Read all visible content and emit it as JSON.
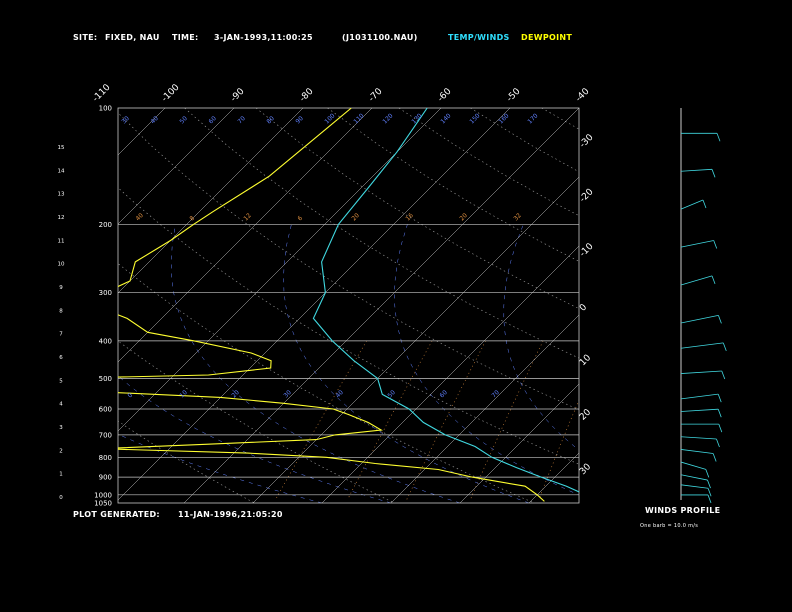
{
  "header": {
    "site_label": "SITE:",
    "site_value": "FIXED, NAU",
    "time_label": "TIME:",
    "time_value": "3-JAN-1993,11:00:25",
    "file_value": "(J1031100.NAU)",
    "legend_temp": "TEMP/WINDS",
    "legend_dew": "DEWPOINT"
  },
  "footer": {
    "generated_label": "PLOT GENERATED:",
    "generated_value": "11-JAN-1996,21:05:20"
  },
  "winds_panel": {
    "title": "WINDS PROFILE",
    "note": "One barb = 10.0 m/s"
  },
  "colors": {
    "temperature": "#40d8e0",
    "dewpoint": "#ffff30",
    "grid": "#c8c8c8",
    "mixing_ratio": "#e09040",
    "dry_adiabat": "#a0a0a0",
    "moist_adiabat": "#6080ff",
    "header_temp": "#30e0ff",
    "header_dew": "#ffff00"
  },
  "chart_data": {
    "type": "line",
    "pressure_ticks": [
      "100",
      "200",
      "300",
      "400",
      "500",
      "600",
      "700",
      "800",
      "900",
      "1000",
      "1050"
    ],
    "height_ticks_km": [
      "0",
      "1",
      "2",
      "3",
      "4",
      "5",
      "6",
      "7",
      "8",
      "9",
      "10",
      "11",
      "12",
      "13",
      "14",
      "15"
    ],
    "top_temp_labels": [
      "-110",
      "-100",
      "-90",
      "-80",
      "-70",
      "-60",
      "-50",
      "-40"
    ],
    "right_temp_labels": [
      "-30",
      "-20",
      "-10",
      "0",
      "10",
      "20",
      "30"
    ],
    "mixing_ratio_labels": [
      "40",
      "8",
      "12",
      "6",
      "20",
      "16",
      "20",
      "32"
    ],
    "dry_adiabat_labels": [
      "30",
      "40",
      "50",
      "60",
      "70",
      "80",
      "90",
      "100",
      "110",
      "120",
      "130",
      "140",
      "150",
      "160",
      "170"
    ],
    "lower_adiabat_labels": [
      "0",
      "10",
      "20",
      "30",
      "40",
      "50",
      "60",
      "70"
    ],
    "series": [
      {
        "name": "TEMP/WINDS",
        "points": [
          [
            100,
            -62
          ],
          [
            130,
            -60
          ],
          [
            160,
            -59
          ],
          [
            200,
            -58
          ],
          [
            250,
            -55
          ],
          [
            300,
            -50
          ],
          [
            350,
            -48
          ],
          [
            400,
            -42
          ],
          [
            450,
            -36
          ],
          [
            500,
            -30
          ],
          [
            550,
            -27
          ],
          [
            600,
            -21
          ],
          [
            650,
            -17
          ],
          [
            700,
            -12
          ],
          [
            750,
            -6
          ],
          [
            800,
            -2
          ],
          [
            850,
            3
          ],
          [
            900,
            8
          ],
          [
            950,
            13
          ],
          [
            1000,
            17
          ],
          [
            1040,
            19
          ]
        ]
      },
      {
        "name": "DEWPOINT",
        "points": [
          [
            100,
            -73
          ],
          [
            150,
            -75
          ],
          [
            185,
            -78
          ],
          [
            200,
            -79
          ],
          [
            220,
            -80
          ],
          [
            250,
            -82
          ],
          [
            280,
            -80
          ],
          [
            300,
            -82
          ],
          [
            330,
            -80
          ],
          [
            350,
            -75
          ],
          [
            380,
            -70
          ],
          [
            400,
            -62
          ],
          [
            430,
            -52
          ],
          [
            450,
            -48
          ],
          [
            470,
            -47
          ],
          [
            490,
            -55
          ],
          [
            510,
            -96
          ],
          [
            520,
            -110
          ],
          [
            530,
            -95
          ],
          [
            540,
            -70
          ],
          [
            560,
            -50
          ],
          [
            580,
            -40
          ],
          [
            600,
            -32
          ],
          [
            620,
            -29
          ],
          [
            650,
            -25
          ],
          [
            680,
            -22
          ],
          [
            700,
            -28
          ],
          [
            720,
            -30
          ],
          [
            740,
            -45
          ],
          [
            760,
            -60
          ],
          [
            780,
            -38
          ],
          [
            800,
            -26
          ],
          [
            830,
            -18
          ],
          [
            860,
            -8
          ],
          [
            900,
            -2
          ],
          [
            950,
            7
          ],
          [
            1000,
            10
          ],
          [
            1040,
            12
          ]
        ]
      }
    ],
    "winds": [
      {
        "height_km": 0.2,
        "dir": 270,
        "speed": 10
      },
      {
        "height_km": 0.6,
        "dir": 250,
        "speed": 12
      },
      {
        "height_km": 1.0,
        "dir": 240,
        "speed": 14
      },
      {
        "height_km": 1.5,
        "dir": 230,
        "speed": 16
      },
      {
        "height_km": 2.0,
        "dir": 250,
        "speed": 18
      },
      {
        "height_km": 2.5,
        "dir": 260,
        "speed": 20
      },
      {
        "height_km": 3.0,
        "dir": 270,
        "speed": 22
      },
      {
        "height_km": 3.5,
        "dir": 280,
        "speed": 22
      },
      {
        "height_km": 4.0,
        "dir": 290,
        "speed": 24
      },
      {
        "height_km": 5.0,
        "dir": 280,
        "speed": 26
      },
      {
        "height_km": 6.0,
        "dir": 290,
        "speed": 30
      },
      {
        "height_km": 7.0,
        "dir": 300,
        "speed": 28
      },
      {
        "height_km": 8.5,
        "dir": 310,
        "speed": 25
      },
      {
        "height_km": 10.0,
        "dir": 300,
        "speed": 22
      },
      {
        "height_km": 11.5,
        "dir": 320,
        "speed": 18
      },
      {
        "height_km": 13.0,
        "dir": 280,
        "speed": 15
      },
      {
        "height_km": 14.5,
        "dir": 270,
        "speed": 20
      }
    ]
  }
}
